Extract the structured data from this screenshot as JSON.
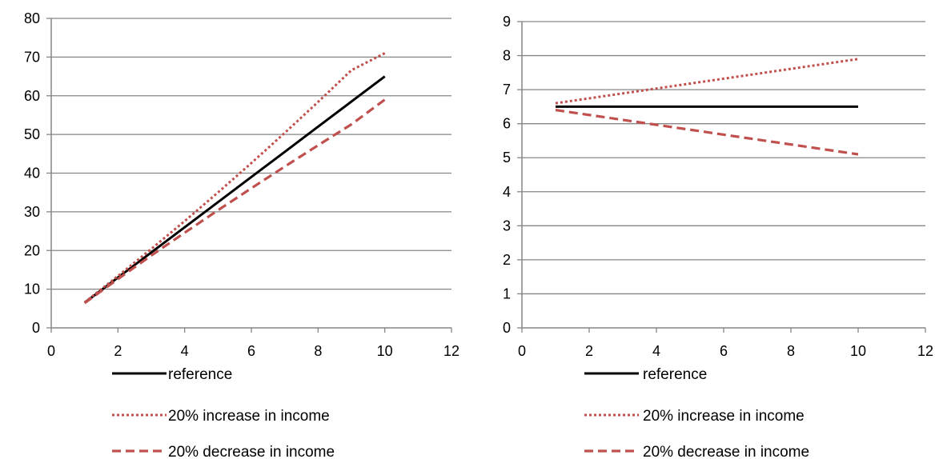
{
  "colors": {
    "reference": "#000000",
    "increase": "#c0504d",
    "decrease": "#c0504d",
    "grid": "#868686",
    "axis": "#868686"
  },
  "chart_data": [
    {
      "type": "line",
      "title": "",
      "xlabel": "",
      "ylabel": "",
      "xlim": [
        0,
        12
      ],
      "ylim": [
        0,
        80
      ],
      "xticks": [
        0,
        2,
        4,
        6,
        8,
        10,
        12
      ],
      "yticks": [
        0,
        10,
        20,
        30,
        40,
        50,
        60,
        70,
        80
      ],
      "grid": "horizontal",
      "legend": "bottom",
      "x": [
        1,
        2,
        3,
        4,
        5,
        6,
        7,
        8,
        9,
        10
      ],
      "series": [
        {
          "name": "reference",
          "style": "solid",
          "values": [
            6.5,
            13,
            19.5,
            26,
            32.5,
            39,
            45.5,
            52,
            58.5,
            65
          ]
        },
        {
          "name": "20% increase in income",
          "style": "dotted",
          "values": [
            6.6,
            13.4,
            20.4,
            27.6,
            35,
            42.6,
            50.4,
            58.4,
            66.6,
            71
          ]
        },
        {
          "name": "20% decrease in income",
          "style": "dashed",
          "values": [
            6.4,
            12.6,
            18.7,
            24.6,
            30.4,
            36.1,
            41.7,
            47.2,
            52.6,
            59
          ]
        }
      ]
    },
    {
      "type": "line",
      "title": "",
      "xlabel": "",
      "ylabel": "",
      "xlim": [
        0,
        12
      ],
      "ylim": [
        0,
        9
      ],
      "xticks": [
        0,
        2,
        4,
        6,
        8,
        10,
        12
      ],
      "yticks": [
        0,
        1,
        2,
        3,
        4,
        5,
        6,
        7,
        8,
        9
      ],
      "grid": "horizontal",
      "legend": "bottom",
      "x": [
        1,
        10
      ],
      "series": [
        {
          "name": "reference",
          "style": "solid",
          "values": [
            6.5,
            6.5
          ]
        },
        {
          "name": "20% increase in income",
          "style": "dotted",
          "values": [
            6.6,
            7.9
          ]
        },
        {
          "name": "20% decrease in income",
          "style": "dashed",
          "values": [
            6.4,
            5.1
          ]
        }
      ]
    }
  ]
}
